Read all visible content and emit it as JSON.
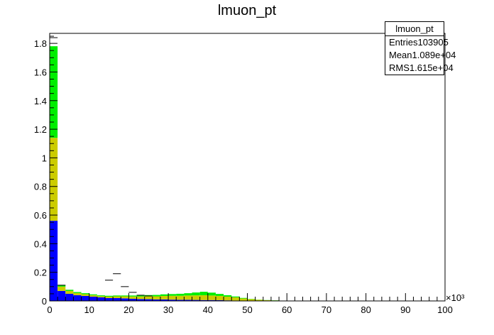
{
  "chart_data": {
    "type": "bar",
    "title": "lmuon_pt",
    "x_exponent_label": "×10³",
    "xlim": [
      0,
      100
    ],
    "ylim": [
      0,
      1.87
    ],
    "x_ticks": [
      "0",
      "10",
      "20",
      "30",
      "40",
      "50",
      "60",
      "70",
      "80",
      "90",
      "100"
    ],
    "y_ticks": [
      "0",
      "0.2",
      "0.4",
      "0.6",
      "0.8",
      "1",
      "1.2",
      "1.4",
      "1.6",
      "1.8"
    ],
    "bin_width": 2,
    "x_starts": [
      0,
      2,
      4,
      6,
      8,
      10,
      12,
      14,
      16,
      18,
      20,
      22,
      24,
      26,
      28,
      30,
      32,
      34,
      36,
      38,
      40,
      42,
      44,
      46,
      48,
      50,
      52,
      54,
      56,
      58,
      60
    ],
    "series": [
      {
        "color": "#0000ff",
        "values": [
          0.56,
          0.07,
          0.05,
          0.04,
          0.035,
          0.03,
          0.025,
          0.02,
          0.02,
          0.018,
          0.015,
          0.013,
          0.012,
          0.01,
          0.01,
          0.009,
          0.008,
          0.008,
          0.007,
          0.006,
          0.006,
          0.005,
          0.004,
          0.003,
          0.002,
          0.002,
          0.001,
          0.001,
          0.0005,
          0,
          0
        ]
      },
      {
        "color": "#cccc00",
        "values": [
          0.58,
          0.03,
          0.02,
          0.015,
          0.012,
          0.01,
          0.008,
          0.01,
          0.012,
          0.014,
          0.016,
          0.018,
          0.02,
          0.022,
          0.025,
          0.027,
          0.028,
          0.03,
          0.032,
          0.034,
          0.032,
          0.03,
          0.026,
          0.022,
          0.015,
          0.01,
          0.007,
          0.004,
          0.003,
          0.002,
          0.001
        ]
      },
      {
        "color": "#00ee00",
        "values": [
          0.64,
          0.01,
          0.008,
          0.007,
          0.007,
          0.006,
          0.006,
          0.006,
          0.006,
          0.006,
          0.007,
          0.008,
          0.009,
          0.01,
          0.011,
          0.012,
          0.014,
          0.016,
          0.02,
          0.024,
          0.02,
          0.014,
          0.01,
          0.006,
          0.004,
          0.002,
          0.001,
          0.001,
          0.001,
          0,
          0
        ]
      }
    ],
    "markers": [
      {
        "x": 1,
        "y": 1.84
      },
      {
        "x": 3,
        "y": 0.11
      },
      {
        "x": 15,
        "y": 0.145
      },
      {
        "x": 17,
        "y": 0.19
      },
      {
        "x": 19,
        "y": 0.1
      },
      {
        "x": 21,
        "y": 0.06
      },
      {
        "x": 23,
        "y": 0.04
      },
      {
        "x": 25,
        "y": 0.035
      }
    ]
  },
  "stats": {
    "title": "lmuon_pt",
    "entries_label": "Entries",
    "entries_value": "103905",
    "mean_label": "Mean",
    "mean_value": "1.089e+04",
    "rms_label": "RMS",
    "rms_value": "1.615e+04"
  }
}
